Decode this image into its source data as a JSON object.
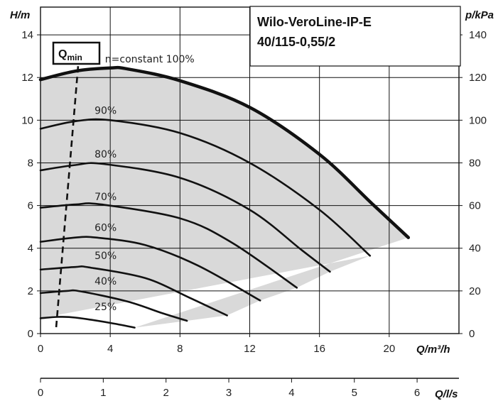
{
  "chart_data": {
    "type": "line",
    "title_lines": [
      "Wilo-VeroLine-IP-E",
      "40/115-0,55/2"
    ],
    "y_left_label": "H/m",
    "y_right_label": "p/kPa",
    "x_label": "Q/m³/h",
    "x2_label": "Q/l/s",
    "qmin_label": "Q",
    "qmin_sub": "min",
    "x_ticks": [
      0,
      4,
      8,
      12,
      16,
      20
    ],
    "x2_ticks": [
      0,
      1,
      2,
      3,
      4,
      5,
      6
    ],
    "y_ticks": [
      0,
      2,
      4,
      6,
      8,
      10,
      12,
      14
    ],
    "y_right_ticks": [
      0,
      20,
      40,
      60,
      80,
      100,
      120,
      140
    ],
    "xlim": [
      0,
      24
    ],
    "ylim": [
      0,
      15.3
    ],
    "grid": true,
    "envelope_color": "#d9d9d9",
    "series": [
      {
        "name": "n=constant 100%",
        "points": [
          [
            0,
            11.9
          ],
          [
            2,
            12.3
          ],
          [
            4,
            12.45
          ],
          [
            5,
            12.4
          ],
          [
            8,
            11.85
          ],
          [
            12,
            10.6
          ],
          [
            16,
            8.4
          ],
          [
            19,
            6.1
          ],
          [
            21.1,
            4.5
          ]
        ],
        "label_at": [
          3.7,
          12.7
        ]
      },
      {
        "name": "90%",
        "points": [
          [
            0,
            9.6
          ],
          [
            2,
            9.95
          ],
          [
            4,
            10.0
          ],
          [
            8,
            9.4
          ],
          [
            12,
            8.0
          ],
          [
            16,
            5.8
          ],
          [
            18.9,
            3.65
          ]
        ],
        "label_at": [
          3.1,
          10.3
        ]
      },
      {
        "name": "80%",
        "points": [
          [
            0,
            7.65
          ],
          [
            2,
            7.9
          ],
          [
            3.6,
            7.95
          ],
          [
            8,
            7.3
          ],
          [
            12,
            5.8
          ],
          [
            15,
            3.9
          ],
          [
            16.6,
            2.9
          ]
        ],
        "label_at": [
          3.1,
          8.25
        ]
      },
      {
        "name": "70%",
        "points": [
          [
            0,
            5.9
          ],
          [
            2,
            6.05
          ],
          [
            3.5,
            6.05
          ],
          [
            8,
            5.4
          ],
          [
            11,
            4.25
          ],
          [
            14.7,
            2.15
          ]
        ],
        "label_at": [
          3.1,
          6.25
        ]
      },
      {
        "name": "60%",
        "points": [
          [
            0,
            4.3
          ],
          [
            2,
            4.5
          ],
          [
            3.2,
            4.5
          ],
          [
            6,
            4.15
          ],
          [
            9,
            3.2
          ],
          [
            12.6,
            1.55
          ]
        ],
        "label_at": [
          3.1,
          4.8
        ]
      },
      {
        "name": "50%",
        "points": [
          [
            0,
            3.0
          ],
          [
            2,
            3.12
          ],
          [
            2.8,
            3.1
          ],
          [
            6,
            2.6
          ],
          [
            8.5,
            1.7
          ],
          [
            10.7,
            0.85
          ]
        ],
        "label_at": [
          3.1,
          3.5
        ]
      },
      {
        "name": "40%",
        "points": [
          [
            0,
            1.9
          ],
          [
            1.5,
            2.0
          ],
          [
            2.3,
            1.98
          ],
          [
            5,
            1.5
          ],
          [
            7,
            0.95
          ],
          [
            8.4,
            0.6
          ]
        ],
        "label_at": [
          3.1,
          2.3
        ]
      },
      {
        "name": "25%",
        "points": [
          [
            0,
            0.72
          ],
          [
            1,
            0.78
          ],
          [
            2,
            0.75
          ],
          [
            4,
            0.5
          ],
          [
            5.4,
            0.28
          ]
        ],
        "label_at": [
          3.1,
          1.1
        ]
      }
    ],
    "qmin_line": [
      [
        0.9,
        0.3
      ],
      [
        2.2,
        12.95
      ]
    ]
  }
}
